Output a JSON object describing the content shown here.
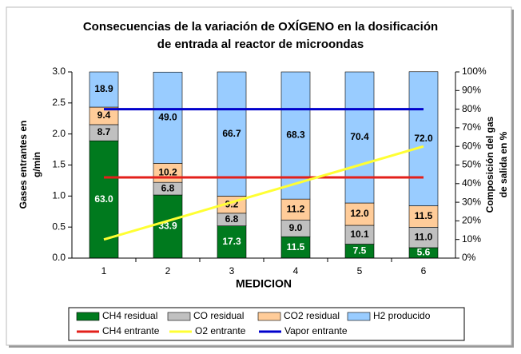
{
  "chart_data": {
    "type": "bar",
    "title": [
      "Consecuencias de la variación de OXÍGENO en la dosificación",
      "de entrada al reactor de microondas"
    ],
    "x_label": "MEDICION",
    "y_label": [
      "Gases entrantes en",
      "g/min"
    ],
    "y2_label": [
      "Composición del gas",
      "de salida en %"
    ],
    "categories": [
      "1",
      "2",
      "3",
      "4",
      "5",
      "6"
    ],
    "ylim": [
      0,
      3
    ],
    "yticks": [
      {
        "value": 0,
        "label": "0.0"
      },
      {
        "value": 0.5,
        "label": "0.5"
      },
      {
        "value": 1,
        "label": "1.0"
      },
      {
        "value": 1.5,
        "label": "1.5"
      },
      {
        "value": 2,
        "label": "2.0"
      },
      {
        "value": 2.5,
        "label": "2.5"
      },
      {
        "value": 3,
        "label": "3.0"
      }
    ],
    "y2lim": [
      0,
      100
    ],
    "y2ticks": [
      {
        "value": 0,
        "label": "0%"
      },
      {
        "value": 10,
        "label": "10%"
      },
      {
        "value": 20,
        "label": "20%"
      },
      {
        "value": 30,
        "label": "30%"
      },
      {
        "value": 40,
        "label": "40%"
      },
      {
        "value": 50,
        "label": "50%"
      },
      {
        "value": 60,
        "label": "60%"
      },
      {
        "value": 70,
        "label": "70%"
      },
      {
        "value": 80,
        "label": "80%"
      },
      {
        "value": 90,
        "label": "90%"
      },
      {
        "value": 100,
        "label": "100%"
      }
    ],
    "legend": "bottom",
    "series": [
      {
        "name": "CH4 residual",
        "type": "bar",
        "axis": "y2",
        "color": "#007a1e",
        "label_color": "#ffffff",
        "values": [
          63,
          33.9,
          17.3,
          11.5,
          7.5,
          5.6
        ],
        "value_labels": [
          "63.0",
          "33.9",
          "17.3",
          "11.5",
          "7.5",
          "5.6"
        ]
      },
      {
        "name": "CO residual",
        "type": "bar",
        "axis": "y2",
        "color": "#c0c0c0",
        "label_color": "#000000",
        "values": [
          8.7,
          6.8,
          6.8,
          9,
          10.1,
          11
        ],
        "value_labels": [
          "8.7",
          "6.8",
          "6.8",
          "9.0",
          "10.1",
          "11.0"
        ]
      },
      {
        "name": "CO2 residual",
        "type": "bar",
        "axis": "y2",
        "color": "#ffcc99",
        "label_color": "#000000",
        "values": [
          9.4,
          10.2,
          9.2,
          11.2,
          12,
          11.5
        ],
        "value_labels": [
          "9.4",
          "10.2",
          "9.2",
          "11.2",
          "12.0",
          "11.5"
        ]
      },
      {
        "name": "H2 producido",
        "type": "bar",
        "axis": "y2",
        "color": "#99ccff",
        "label_color": "#000000",
        "values": [
          18.9,
          49,
          66.7,
          68.3,
          70.4,
          72
        ],
        "value_labels": [
          "18.9",
          "49.0",
          "66.7",
          "68.3",
          "70.4",
          "72.0"
        ]
      },
      {
        "name": "CH4 entrante",
        "type": "line",
        "axis": "y",
        "color": "#e3201b",
        "values": [
          1.3,
          1.3,
          1.3,
          1.3,
          1.3,
          1.3
        ]
      },
      {
        "name": "O2 entrante",
        "type": "line",
        "axis": "y",
        "color": "#ffff33",
        "values": [
          0.3,
          0.6,
          0.9,
          1.2,
          1.5,
          1.8
        ]
      },
      {
        "name": "Vapor entrante",
        "type": "line",
        "axis": "y",
        "color": "#0000cc",
        "values": [
          2.4,
          2.4,
          2.4,
          2.4,
          2.4,
          2.4
        ]
      }
    ]
  }
}
